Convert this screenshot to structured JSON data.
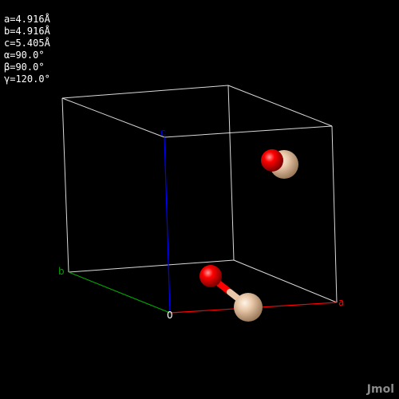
{
  "cell_parameters": [
    {
      "label": "a",
      "text": "a=4.916Å"
    },
    {
      "label": "b",
      "text": "b=4.916Å"
    },
    {
      "label": "c",
      "text": "c=5.405Å"
    },
    {
      "label": "alpha",
      "text": "α=90.0°"
    },
    {
      "label": "beta",
      "text": "β=90.0°"
    },
    {
      "label": "gamma",
      "text": "γ=120.0°"
    }
  ],
  "axes": {
    "origin": {
      "label": "0",
      "color": "#ffffff"
    },
    "a": {
      "label": "a",
      "color": "#ff0000"
    },
    "b": {
      "label": "b",
      "color": "#00a000"
    },
    "c": {
      "label": "c",
      "color": "#0000ff"
    }
  },
  "atoms": {
    "oxygen_color": "#ff0000",
    "silicon_color": "#e8c8a8"
  },
  "bond_colors": [
    "#ff0000",
    "#e8c8a8"
  ],
  "cell_edge_color": "#ffffff",
  "brand": "Jmol"
}
